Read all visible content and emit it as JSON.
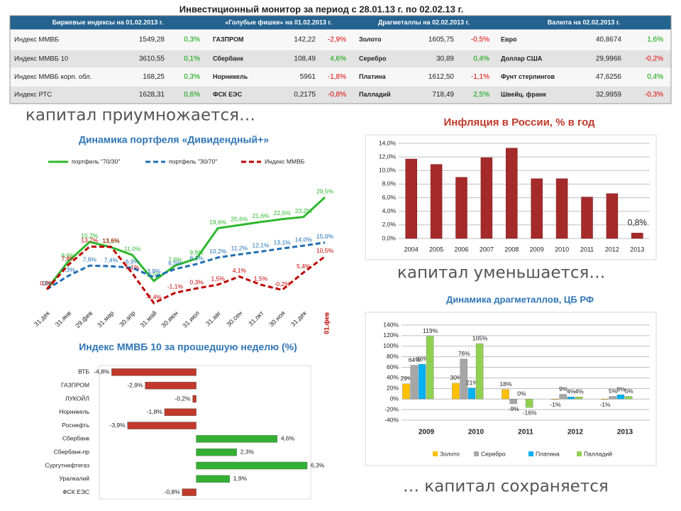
{
  "header": {
    "title": "Инвестиционный монитор за период с 28.01.13 г. по 02.02.13 г."
  },
  "table": {
    "columns": [
      "Биржевые индексы  на 01.02.2013 г.",
      "«Голубые фишки»  на 01.02.2013 г.",
      "Драгметаллы  на 02.02.2013 г.",
      "Валюта  на 02.02.2013 г."
    ],
    "rows": [
      [
        [
          "Индекс ММВБ",
          "1549,28",
          "0,3%"
        ],
        [
          "ГАЗПРОМ",
          "142,22",
          "-2,9%"
        ],
        [
          "Золото",
          "1605,75",
          "-0,5%"
        ],
        [
          "Евро",
          "40,8674",
          "1,6%"
        ]
      ],
      [
        [
          "Индекс ММВБ 10",
          "3610,55",
          "0,1%"
        ],
        [
          "Сбербанк",
          "108,49",
          "4,6%"
        ],
        [
          "Серебро",
          "30,89",
          "0,4%"
        ],
        [
          "Доллар США",
          "29,9966",
          "-0,2%"
        ]
      ],
      [
        [
          "Индекс ММВБ корп. обл.",
          "168,25",
          "0,3%"
        ],
        [
          "Норникель",
          "5961",
          "-1,8%"
        ],
        [
          "Платина",
          "1612,50",
          "-1,1%"
        ],
        [
          "Фунт стерлингов",
          "47,6256",
          "0,4%"
        ]
      ],
      [
        [
          "Индекс РТС",
          "1628,31",
          "0,6%"
        ],
        [
          "ФСК ЕЭС",
          "0,2175",
          "-0,8%"
        ],
        [
          "Палладий",
          "718,49",
          "2,5%"
        ],
        [
          "Швейц. франк",
          "32,9959",
          "-0,3%"
        ]
      ]
    ]
  },
  "captions": [
    "капитал приумножается…",
    "капитал уменьшается…",
    "… капитал сохраняется"
  ],
  "chart_data": [
    {
      "type": "line",
      "title": "Динамика портфеля «Дивидендный+»",
      "categories": [
        "31.дек",
        "31.янв",
        "29.фев",
        "31.мар",
        "30.апр",
        "31.май",
        "30.июн",
        "31.июл",
        "31.авг",
        "30.сен",
        "31.окт",
        "30.ноя",
        "31.дек",
        "01.фев"
      ],
      "series": [
        {
          "name": "портфель \"70/30\"",
          "color": "#2eb82e",
          "line_style": "solid",
          "values": [
            0,
            8.9,
            15.2,
            13.5,
            11.0,
            2.7,
            7.6,
            9.9,
            19.6,
            20.6,
            21.6,
            22.5,
            23.2,
            29.5
          ],
          "value_labels": [
            "0%",
            "8,9%",
            "15,2%",
            "13,5%",
            "11,0%",
            "2,7%",
            "7,6%",
            "9,9%",
            "19,6%",
            "20,6%",
            "21,6%",
            "22,5%",
            "23,2%",
            "29,5%"
          ]
        },
        {
          "name": "портфель \"30/70\"",
          "color": "#1f6fb5",
          "line_style": "dashed",
          "values": [
            0,
            4.3,
            7.6,
            7.4,
            6.9,
            3.9,
            6.5,
            8.1,
            10.2,
            11.2,
            12.1,
            13.1,
            14.0,
            15.0
          ],
          "value_labels": [
            "0%",
            "4,3%",
            "7,6%",
            "7,4%",
            "6,9%",
            "3,9%",
            "6,5%",
            "8,1%",
            "10,2%",
            "11,2%",
            "12,1%",
            "13,1%",
            "14,0%",
            "15,0%"
          ]
        },
        {
          "name": "Индекс ММВБ",
          "color": "#c00000",
          "line_style": "dashed",
          "values": [
            0,
            7.8,
            13.7,
            13.6,
            5.1,
            -4.4,
            -1.1,
            0.3,
            1.5,
            4.1,
            1.5,
            -0.2,
            5.4,
            10.5
          ],
          "value_labels": [
            "0,0%",
            "7,8%",
            "13,7%",
            "13,6%",
            "5,1%",
            "-4,4%",
            "-1,1%",
            "0,3%",
            "1,5%",
            "4,1%",
            "1,5%",
            "-0,2%",
            "5,4%",
            "10,5%"
          ]
        }
      ]
    },
    {
      "type": "bar",
      "title": "Инфляция в России, % в год",
      "categories": [
        "2004",
        "2005",
        "2006",
        "2007",
        "2008",
        "2009",
        "2010",
        "2011",
        "2012",
        "2013"
      ],
      "values": [
        11.7,
        10.9,
        9.0,
        11.9,
        13.3,
        8.8,
        8.8,
        6.1,
        6.6,
        0.8
      ],
      "value_labels": [
        null,
        null,
        null,
        null,
        null,
        null,
        null,
        null,
        null,
        "0,8%"
      ],
      "color": "#a52a2a",
      "ylim": [
        0,
        14
      ],
      "yticks": [
        {
          "value": 0,
          "label": "0,0%"
        },
        {
          "value": 2,
          "label": "2,0%"
        },
        {
          "value": 4,
          "label": "4,0%"
        },
        {
          "value": 6,
          "label": "6,0%"
        },
        {
          "value": 8,
          "label": "8,0%"
        },
        {
          "value": 10,
          "label": "10,0%"
        },
        {
          "value": 12,
          "label": "12,0%"
        },
        {
          "value": 14,
          "label": "14,0%"
        }
      ],
      "grid": true
    },
    {
      "type": "grouped_bar",
      "title": "Динамика драгметаллов, ЦБ РФ",
      "categories": [
        "2009",
        "2010",
        "2011",
        "2012",
        "2013"
      ],
      "series": [
        {
          "name": "Золото",
          "color": "#ffc000",
          "values": [
            29,
            30,
            18,
            -1,
            -1
          ],
          "value_labels": [
            "29%",
            "30%",
            "18%",
            "-1%",
            "-1%"
          ]
        },
        {
          "name": "Серебро",
          "color": "#a6a6a6",
          "values": [
            64,
            76,
            -9,
            9,
            5
          ],
          "value_labels": [
            "64%",
            "76%",
            "-9%",
            "9%",
            "5%"
          ]
        },
        {
          "name": "Платина",
          "color": "#00b0f0",
          "values": [
            66,
            21,
            0,
            4,
            8
          ],
          "value_labels": [
            "66%",
            "21%",
            "0%",
            "4%",
            "8%"
          ]
        },
        {
          "name": "Палладий",
          "color": "#92d050",
          "values": [
            119,
            105,
            -16,
            4,
            5
          ],
          "value_labels": [
            "119%",
            "105%",
            "-16%",
            "4%",
            "5%"
          ]
        }
      ],
      "ylim": [
        -40,
        140
      ],
      "yticks": [
        {
          "value": -40,
          "label": "-40%"
        },
        {
          "value": -20,
          "label": "-20%"
        },
        {
          "value": 0,
          "label": "0%"
        },
        {
          "value": 20,
          "label": "20%"
        },
        {
          "value": 40,
          "label": "40%"
        },
        {
          "value": 60,
          "label": "60%"
        },
        {
          "value": 80,
          "label": "80%"
        },
        {
          "value": 100,
          "label": "100%"
        },
        {
          "value": 120,
          "label": "120%"
        },
        {
          "value": 140,
          "label": "140%"
        }
      ],
      "grid": true
    },
    {
      "type": "hbar",
      "title": "Индекс ММВБ 10 за прошедшую неделю (%)",
      "categories": [
        "ВТБ",
        "ГАЗПРОМ",
        "ЛУКОЙЛ",
        "Норникель",
        "Роснефть",
        "Сбербанк",
        "Сбербанк-пр",
        "Сургутнефтегаз",
        "Уралкалий",
        "ФСК ЕЭС"
      ],
      "values": [
        -4.8,
        -2.9,
        -0.2,
        -1.8,
        -3.9,
        4.6,
        2.3,
        6.3,
        1.9,
        -0.8
      ],
      "value_labels": [
        "-4,8%",
        "-2,9%",
        "-0,2%",
        "-1,8%",
        "-3,9%",
        "4,6%",
        "2,3%",
        "6,3%",
        "1,9%",
        "-0,8%"
      ],
      "color_positive": "#33b033",
      "color_negative": "#c0392b",
      "xlim": [
        -5.5,
        6.5
      ]
    }
  ]
}
